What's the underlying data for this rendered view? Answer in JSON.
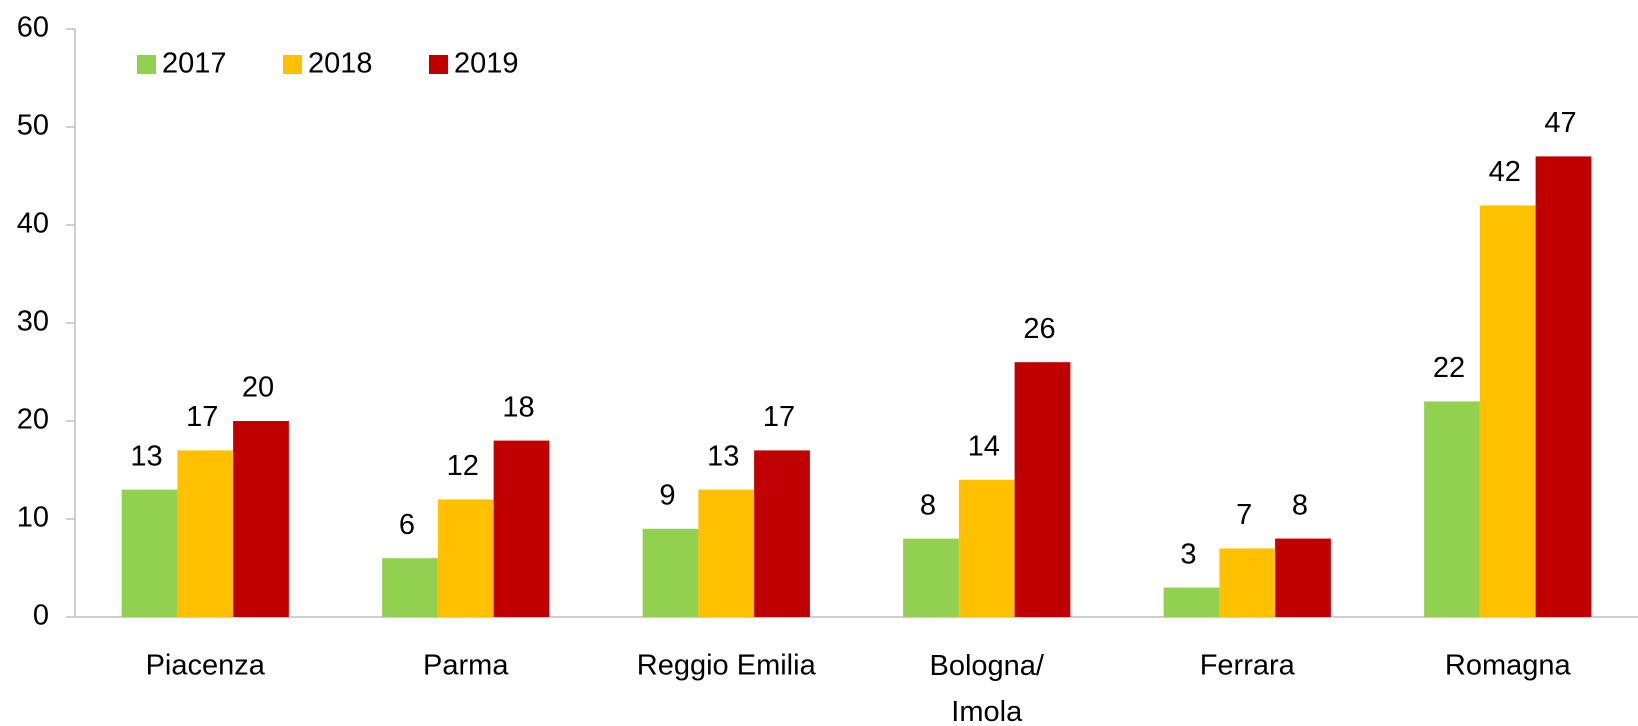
{
  "chart_data": {
    "type": "bar",
    "categories": [
      "Piacenza",
      "Parma",
      "Reggio Emilia",
      "Bologna/ Imola",
      "Ferrara",
      "Romagna"
    ],
    "series": [
      {
        "name": "2017",
        "color": "#92d050",
        "values": [
          13,
          6,
          9,
          8,
          3,
          22
        ]
      },
      {
        "name": "2018",
        "color": "#ffc000",
        "values": [
          17,
          12,
          13,
          14,
          7,
          42
        ]
      },
      {
        "name": "2019",
        "color": "#c00000",
        "values": [
          20,
          18,
          17,
          26,
          8,
          47
        ]
      }
    ],
    "ylim": [
      0,
      60
    ],
    "yticks": [
      0,
      10,
      20,
      30,
      40,
      50,
      60
    ],
    "grid": false,
    "legend": "top-left"
  }
}
